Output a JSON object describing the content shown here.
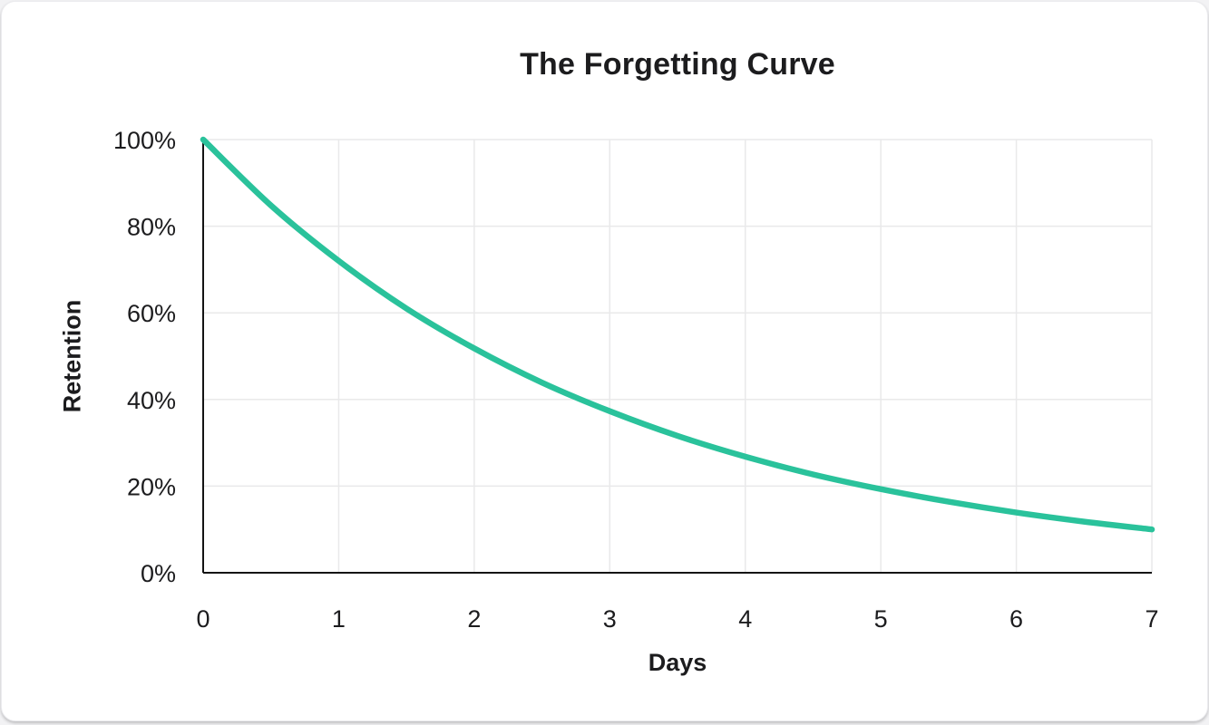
{
  "card": {
    "title": "The Forgetting Curve"
  },
  "chart_data": {
    "type": "line",
    "title": "The Forgetting Curve",
    "xlabel": "Days",
    "ylabel": "Retention",
    "xlim": [
      0,
      7
    ],
    "ylim": [
      0,
      100
    ],
    "x_ticks": [
      "0",
      "1",
      "2",
      "3",
      "4",
      "5",
      "6",
      "7"
    ],
    "x_tick_values": [
      0,
      1,
      2,
      3,
      4,
      5,
      6,
      7
    ],
    "y_ticks": [
      "0%",
      "20%",
      "40%",
      "60%",
      "80%",
      "100%"
    ],
    "y_tick_values": [
      0,
      20,
      40,
      60,
      80,
      100
    ],
    "grid": true,
    "legend_position": "none",
    "series": [
      {
        "name": "Retention",
        "color": "#2ac29b",
        "x": [
          0,
          0.5,
          1,
          1.5,
          2,
          2.5,
          3,
          3.5,
          4,
          4.5,
          5,
          5.5,
          6,
          6.5,
          7
        ],
        "y": [
          100,
          84.8,
          72,
          61,
          51.8,
          43.9,
          37.3,
          31.6,
          26.8,
          22.7,
          19.3,
          16.4,
          13.9,
          11.8,
          10
        ]
      }
    ]
  },
  "colors": {
    "curve": "#2ac29b",
    "grid": "#e9e9ea",
    "axis": "#141414",
    "text": "#1c1c1e",
    "card_bg": "#ffffff",
    "page_bg": "#f2f2f4"
  }
}
